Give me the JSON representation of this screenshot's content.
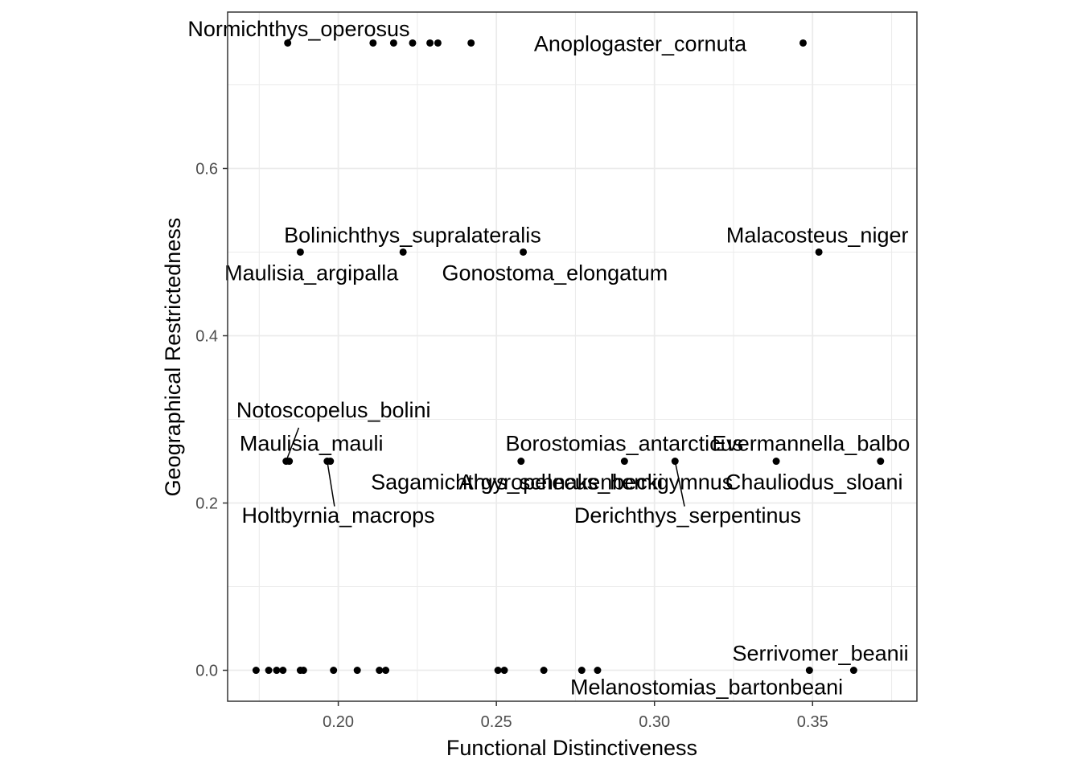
{
  "chart_data": {
    "type": "scatter",
    "title": "",
    "xlabel": "Functional Distinctiveness",
    "ylabel": "Geographical Restrictedness",
    "xlim": [
      0.165,
      0.383
    ],
    "ylim": [
      -0.037,
      0.787
    ],
    "x_ticks": [
      {
        "value": 0.2,
        "label": "0.20"
      },
      {
        "value": 0.25,
        "label": "0.25"
      },
      {
        "value": 0.3,
        "label": "0.30"
      },
      {
        "value": 0.35,
        "label": "0.35"
      }
    ],
    "y_ticks": [
      {
        "value": 0.0,
        "label": "0.0"
      },
      {
        "value": 0.2,
        "label": "0.2"
      },
      {
        "value": 0.4,
        "label": "0.4"
      },
      {
        "value": 0.6,
        "label": "0.6"
      }
    ],
    "grid": true,
    "points": [
      {
        "x": 0.184,
        "y": 0.75
      },
      {
        "x": 0.211,
        "y": 0.75
      },
      {
        "x": 0.2175,
        "y": 0.75
      },
      {
        "x": 0.2235,
        "y": 0.75
      },
      {
        "x": 0.229,
        "y": 0.75
      },
      {
        "x": 0.2315,
        "y": 0.75
      },
      {
        "x": 0.242,
        "y": 0.75
      },
      {
        "x": 0.347,
        "y": 0.75
      },
      {
        "x": 0.188,
        "y": 0.5
      },
      {
        "x": 0.2205,
        "y": 0.5
      },
      {
        "x": 0.2585,
        "y": 0.5
      },
      {
        "x": 0.352,
        "y": 0.5
      },
      {
        "x": 0.1835,
        "y": 0.25
      },
      {
        "x": 0.1845,
        "y": 0.25
      },
      {
        "x": 0.1965,
        "y": 0.25
      },
      {
        "x": 0.1975,
        "y": 0.25
      },
      {
        "x": 0.2578,
        "y": 0.25
      },
      {
        "x": 0.2905,
        "y": 0.25
      },
      {
        "x": 0.3065,
        "y": 0.25
      },
      {
        "x": 0.3385,
        "y": 0.25
      },
      {
        "x": 0.3715,
        "y": 0.25
      },
      {
        "x": 0.174,
        "y": 0.0
      },
      {
        "x": 0.178,
        "y": 0.0
      },
      {
        "x": 0.1805,
        "y": 0.0
      },
      {
        "x": 0.1825,
        "y": 0.0
      },
      {
        "x": 0.188,
        "y": 0.0
      },
      {
        "x": 0.189,
        "y": 0.0
      },
      {
        "x": 0.1985,
        "y": 0.0
      },
      {
        "x": 0.206,
        "y": 0.0
      },
      {
        "x": 0.213,
        "y": 0.0
      },
      {
        "x": 0.215,
        "y": 0.0
      },
      {
        "x": 0.2505,
        "y": 0.0
      },
      {
        "x": 0.2525,
        "y": 0.0
      },
      {
        "x": 0.265,
        "y": 0.0
      },
      {
        "x": 0.277,
        "y": 0.0
      },
      {
        "x": 0.282,
        "y": 0.0
      },
      {
        "x": 0.349,
        "y": 0.0
      },
      {
        "x": 0.363,
        "y": 0.0
      }
    ],
    "labels": [
      {
        "text": "Normichthys_operosus",
        "x": 0.184,
        "y": 0.75,
        "lx": 0.1875,
        "ly": 0.767
      },
      {
        "text": "Anoplogaster_cornuta",
        "x": 0.347,
        "y": 0.75,
        "lx": 0.2955,
        "ly": 0.749
      },
      {
        "text": "Bolinichthys_supralateralis",
        "x": 0.2205,
        "y": 0.5,
        "lx": 0.2235,
        "ly": 0.52
      },
      {
        "text": "Malacosteus_niger",
        "x": 0.352,
        "y": 0.5,
        "lx": 0.3515,
        "ly": 0.52
      },
      {
        "text": "Maulisia_argipalla",
        "x": 0.188,
        "y": 0.5,
        "lx": 0.1915,
        "ly": 0.475
      },
      {
        "text": "Gonostoma_elongatum",
        "x": 0.2585,
        "y": 0.5,
        "lx": 0.2685,
        "ly": 0.475
      },
      {
        "text": "Notoscopelus_bolini",
        "x": 0.1835,
        "y": 0.25,
        "lx": 0.1985,
        "ly": 0.311,
        "lineTo": [
          0.1875,
          0.29
        ]
      },
      {
        "text": "Maulisia_mauli",
        "x": 0.1845,
        "y": 0.25,
        "lx": 0.1915,
        "ly": 0.271
      },
      {
        "text": "Borostomias_antarcticus",
        "x": 0.2578,
        "y": 0.25,
        "lx": 0.2905,
        "ly": 0.271
      },
      {
        "text": "Evermannella_balbo",
        "x": 0.3385,
        "y": 0.25,
        "lx": 0.3495,
        "ly": 0.271
      },
      {
        "text": "Sagamichthys_schnakenbecki",
        "x": 0.1975,
        "y": 0.25,
        "lx": 0.2565,
        "ly": 0.225
      },
      {
        "text": "Argyropelecus_hemigymnus",
        "x": 0.2905,
        "y": 0.25,
        "lx": 0.2815,
        "ly": 0.225
      },
      {
        "text": "Chauliodus_sloani",
        "x": 0.3715,
        "y": 0.25,
        "lx": 0.3505,
        "ly": 0.225
      },
      {
        "text": "Holtbyrnia_macrops",
        "x": 0.1965,
        "y": 0.25,
        "lx": 0.2,
        "ly": 0.185,
        "lineTo": [
          0.1988,
          0.196
        ]
      },
      {
        "text": "Derichthys_serpentinus",
        "x": 0.3065,
        "y": 0.25,
        "lx": 0.3105,
        "ly": 0.185,
        "lineTo": [
          0.3095,
          0.196
        ]
      },
      {
        "text": "Serrivomer_beanii",
        "x": 0.349,
        "y": 0.0,
        "lx": 0.3525,
        "ly": 0.02
      },
      {
        "text": "Melanostomias_bartonbeani",
        "x": 0.363,
        "y": 0.0,
        "lx": 0.3165,
        "ly": -0.02
      }
    ]
  }
}
